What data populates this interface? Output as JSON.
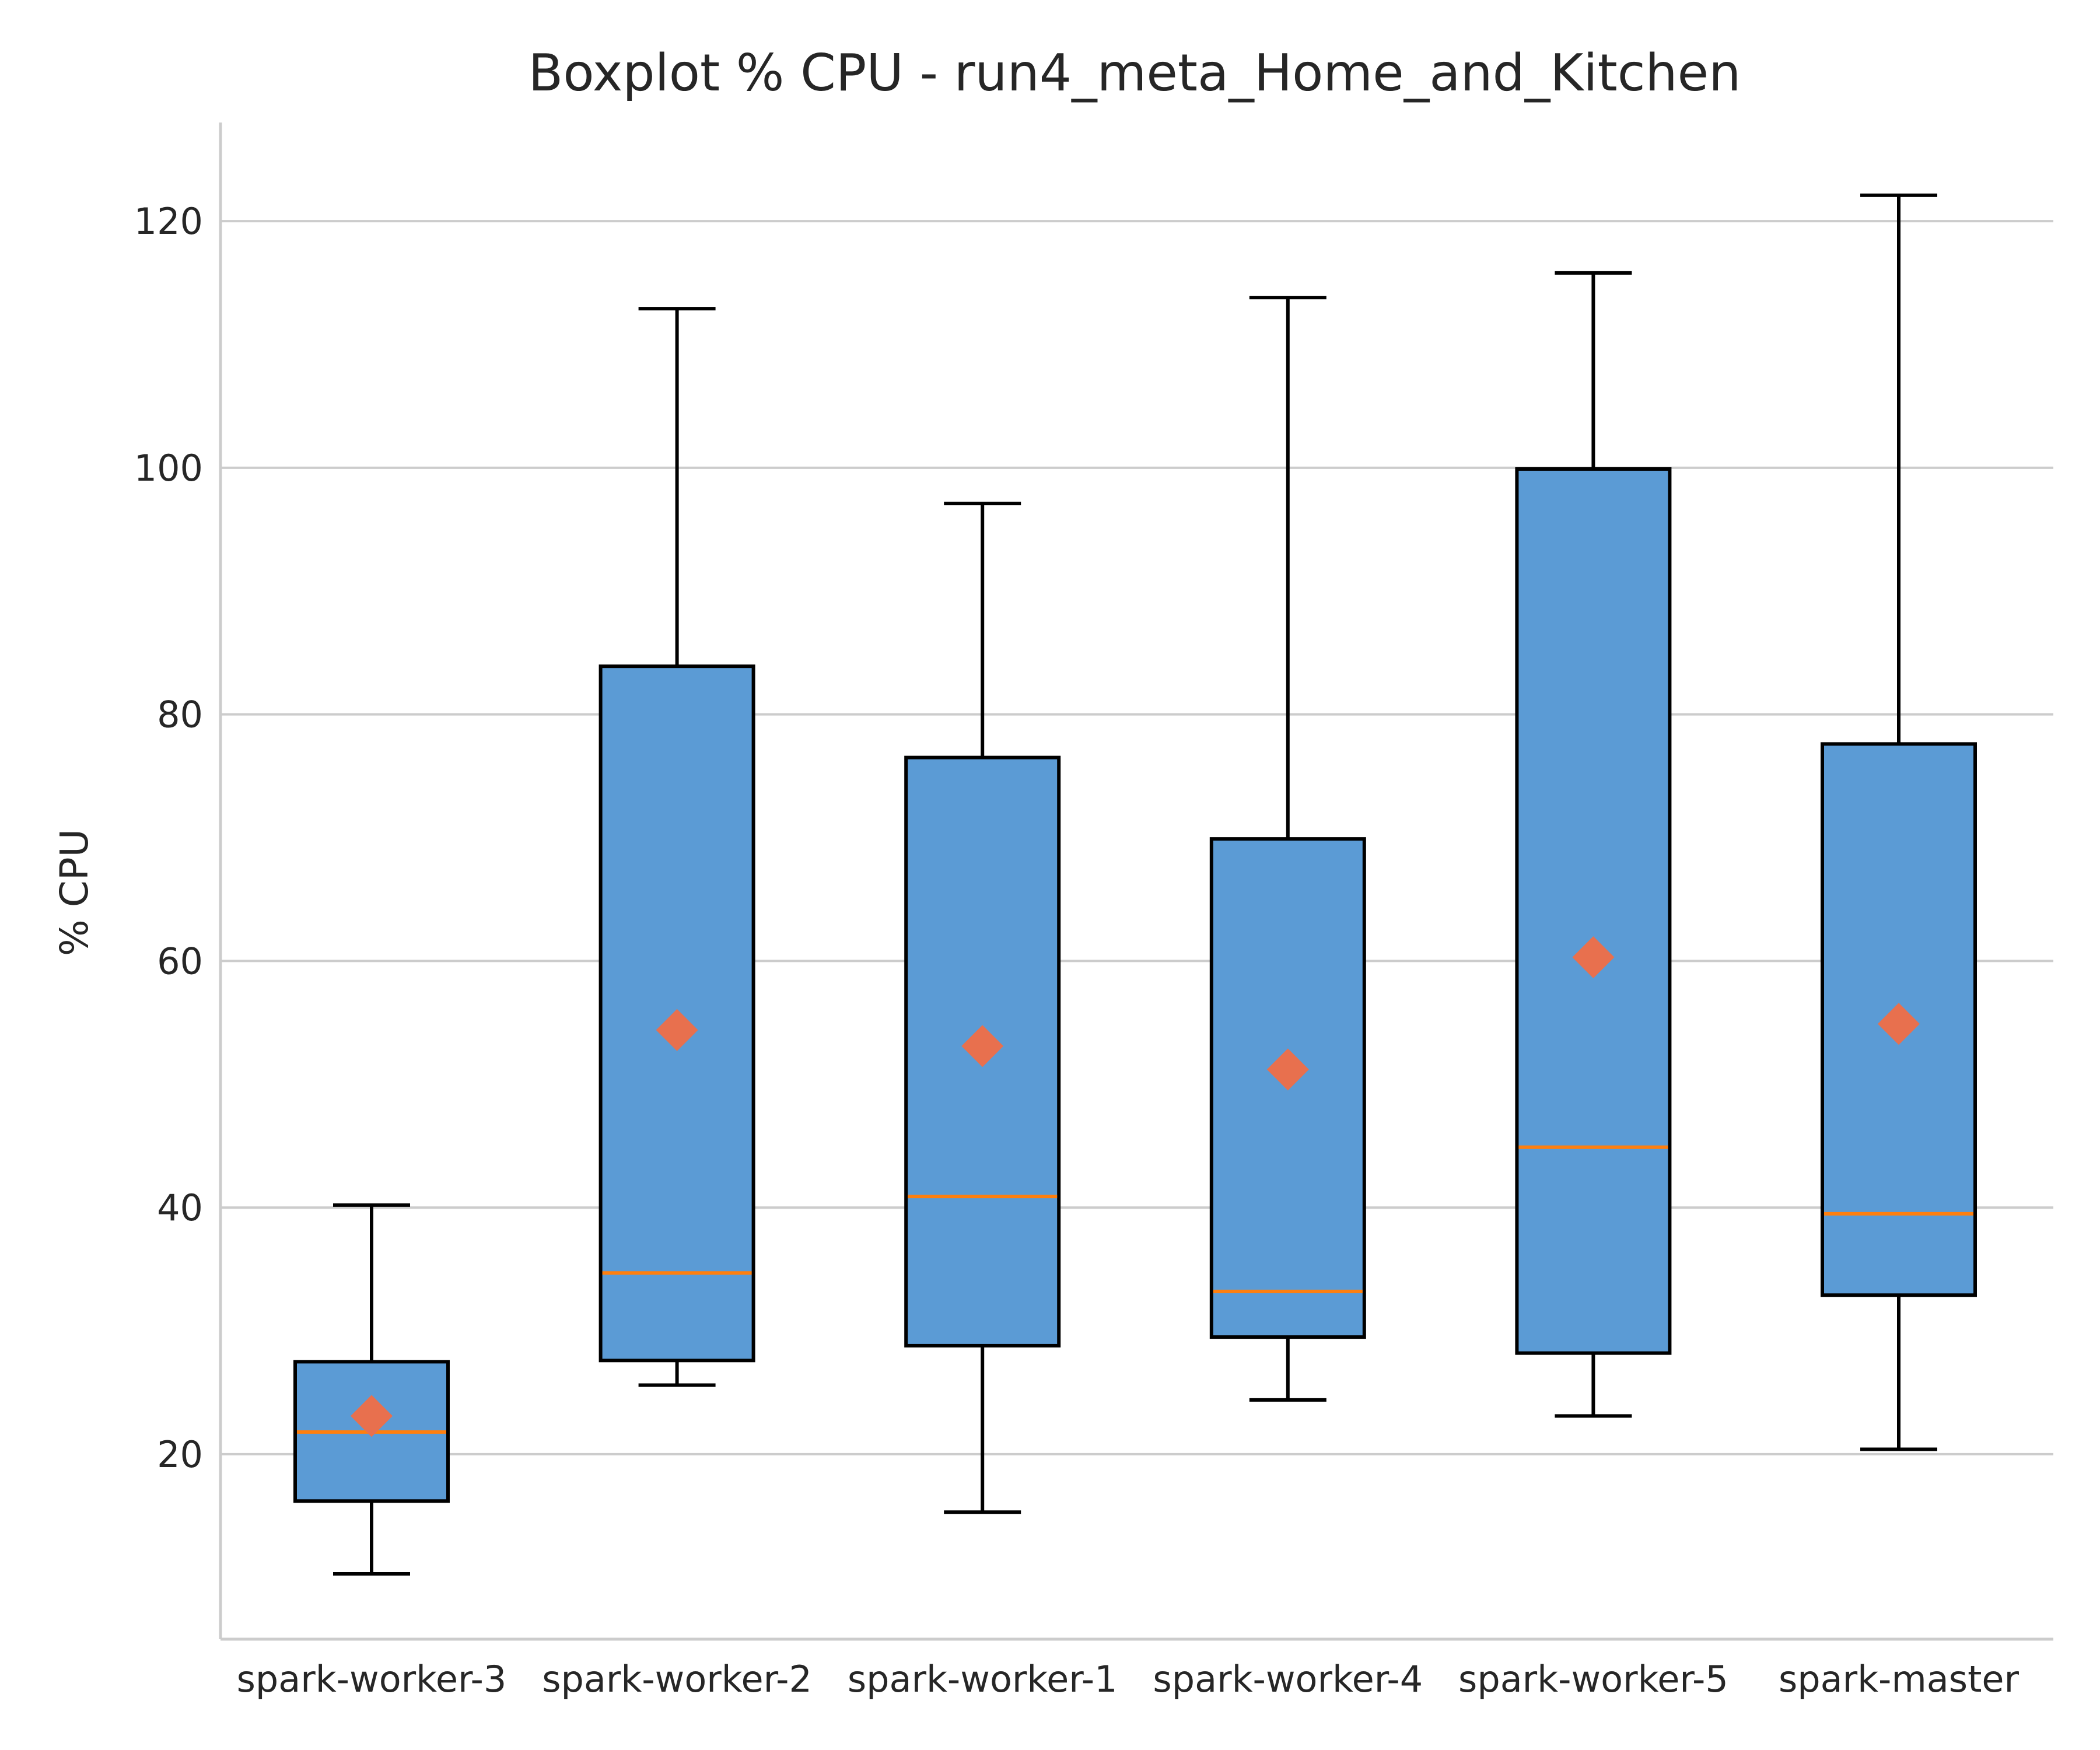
{
  "chart_data": {
    "type": "boxplot",
    "title": "Boxplot % CPU - run4_meta_Home_and_Kitchen",
    "xlabel": "",
    "ylabel": "% CPU",
    "ylim": [
      5,
      128
    ],
    "yticks": [
      20,
      40,
      60,
      80,
      100,
      120
    ],
    "grid": "horizontal",
    "colors": {
      "box_fill": "#5b9bd5",
      "median": "#ff7f0e",
      "mean_marker": "#e8704e",
      "grid": "#cccccc",
      "outline": "#000000"
    },
    "categories": [
      "spark-worker-3",
      "spark-worker-2",
      "spark-worker-1",
      "spark-worker-4",
      "spark-worker-5",
      "spark-master"
    ],
    "boxes": [
      {
        "whisker_low": 10.3,
        "q1": 16.2,
        "median": 21.8,
        "q3": 27.5,
        "whisker_high": 40.2,
        "mean": 23.1
      },
      {
        "whisker_low": 25.6,
        "q1": 27.6,
        "median": 34.7,
        "q3": 83.9,
        "whisker_high": 112.9,
        "mean": 54.4
      },
      {
        "whisker_low": 15.3,
        "q1": 28.8,
        "median": 40.9,
        "q3": 76.5,
        "whisker_high": 97.1,
        "mean": 53.1
      },
      {
        "whisker_low": 24.4,
        "q1": 29.5,
        "median": 33.2,
        "q3": 69.9,
        "whisker_high": 113.8,
        "mean": 51.2
      },
      {
        "whisker_low": 23.1,
        "q1": 28.2,
        "median": 44.9,
        "q3": 99.9,
        "whisker_high": 115.8,
        "mean": 60.3
      },
      {
        "whisker_low": 20.4,
        "q1": 32.9,
        "median": 39.5,
        "q3": 77.6,
        "whisker_high": 122.1,
        "mean": 54.9
      }
    ]
  }
}
